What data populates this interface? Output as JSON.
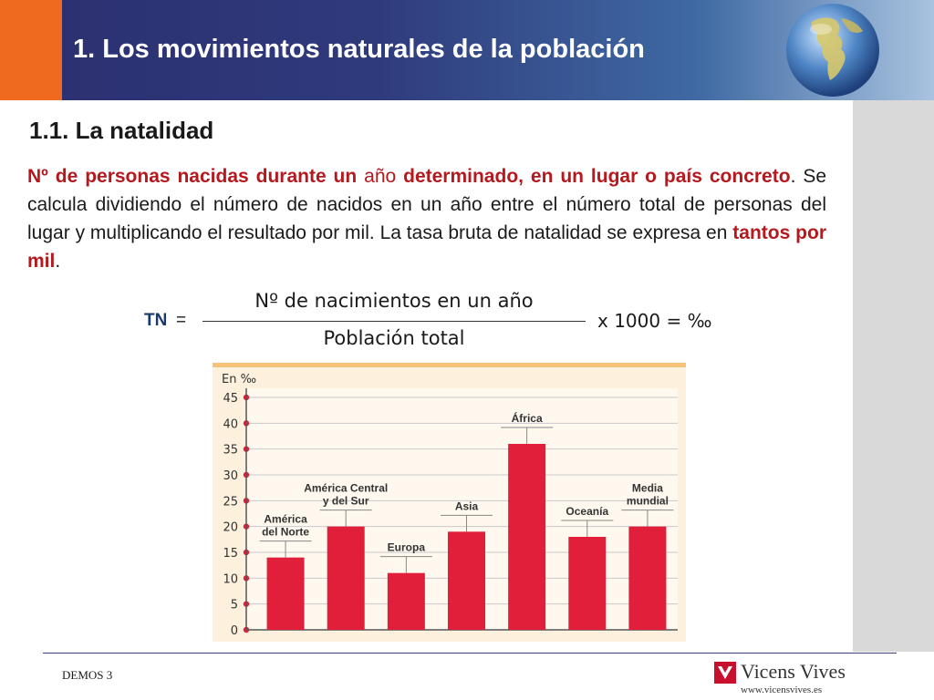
{
  "header": {
    "title": "1. Los movimientos naturales de la población",
    "accent_color": "#ef6a1f",
    "bg_color": "#2b2f6f",
    "decoration": "globe-icon"
  },
  "section": {
    "title": "1.1. La natalidad"
  },
  "definition": {
    "part1": "Nº de personas nacidas durante un",
    "part2": "año",
    "part3": "determinado, en un lugar o país concreto",
    "part4": ". Se calcula dividiendo el número de nacidos en un año entre el número total de personas del lugar y multiplicando el resultado por mil. La tasa bruta de natalidad se expresa en",
    "part5": "tantos por mil",
    "part6": ".",
    "highlight_color": "#b5191e"
  },
  "formula": {
    "label": "TN",
    "equals": "=",
    "numerator": "Nº de nacimientos en un año",
    "denominator": "Población total",
    "multiplier": "x 1000 = ‰"
  },
  "chart_data": {
    "type": "bar",
    "unit_label": "En ‰",
    "categories": [
      "América del Norte",
      "América Central y del Sur",
      "Europa",
      "Asia",
      "África",
      "Oceanía",
      "Media mundial"
    ],
    "category_labels": [
      [
        "América",
        "del Norte"
      ],
      [
        "América Central",
        "y del Sur"
      ],
      [
        "Europa"
      ],
      [
        "Asia"
      ],
      [
        "África"
      ],
      [
        "Oceanía"
      ],
      [
        "Media",
        "mundial"
      ]
    ],
    "values": [
      14,
      20,
      11,
      19,
      36,
      18,
      20
    ],
    "yticks": [
      0,
      5,
      10,
      15,
      20,
      25,
      30,
      35,
      40,
      45
    ],
    "ylim": [
      0,
      45
    ],
    "grid": true,
    "bar_color": "#e21f3a",
    "bg_color": "#fdf0dc"
  },
  "footer": {
    "left_text": "DEMOS 3",
    "brand": "Vicens Vives",
    "url": "www.vicensvives.es",
    "brand_color": "#c8102e",
    "logo_icon": "vicens-vives-logo-icon"
  }
}
